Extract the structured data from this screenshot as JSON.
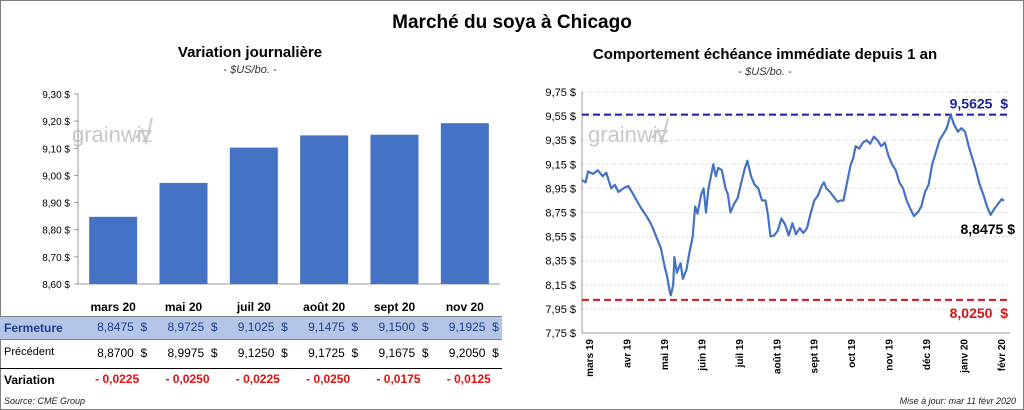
{
  "title": "Marché du soya à Chicago",
  "left": {
    "subtitle": "Variation journalière",
    "unit": "- $US/bo. -",
    "watermark": "grainwiz",
    "chart_data": {
      "type": "bar",
      "categories": [
        "mars 20",
        "mai 20",
        "juil 20",
        "août 20",
        "sept 20",
        "nov 20"
      ],
      "values": [
        8.8475,
        8.9725,
        9.1025,
        9.1475,
        9.15,
        9.1925
      ],
      "ylim": [
        8.6,
        9.3
      ],
      "yticks": [
        "8,60 $",
        "8,70 $",
        "8,80 $",
        "8,90 $",
        "9,00 $",
        "9,10 $",
        "9,20 $",
        "9,30 $"
      ],
      "color": "#4472c4"
    },
    "table": {
      "fermeture_label": "Fermeture",
      "fermeture": [
        "8,8475  $",
        "8,9725  $",
        "9,1025  $",
        "9,1475  $",
        "9,1500  $",
        "9,1925  $"
      ],
      "precedent_label": "Précédent",
      "precedent": [
        "8,8700  $",
        "8,9975  $",
        "9,1250  $",
        "9,1725  $",
        "9,1675  $",
        "9,2050  $"
      ],
      "variation_label": "Variation",
      "variation": [
        "- 0,0225",
        "- 0,0250",
        "- 0,0225",
        "- 0,0250",
        "- 0,0175",
        "- 0,0125"
      ]
    },
    "source": "Source: CME Group"
  },
  "right": {
    "subtitle": "Comportement  échéance immédiate depuis 1 an",
    "unit": "- $US/bo. -",
    "watermark": "grainwiz",
    "chart_data": {
      "type": "line",
      "ylim": [
        7.75,
        9.75
      ],
      "yticks": [
        "7,75 $",
        "7,95 $",
        "8,15 $",
        "8,35 $",
        "8,55 $",
        "8,75 $",
        "8,95 $",
        "9,15 $",
        "9,35 $",
        "9,55 $",
        "9,75 $"
      ],
      "xticks": [
        "mars 19",
        "avr 19",
        "mai 19",
        "juin 19",
        "juil 19",
        "août 19",
        "sept 19",
        "oct 19",
        "nov 19",
        "déc 19",
        "janv 20",
        "févr 20"
      ],
      "x_start": "2019-03-01",
      "x_end": "2020-02-11",
      "series": [
        {
          "color": "#4472c4",
          "points": [
            [
              "2019-03-01",
              9.02
            ],
            [
              "2019-03-04",
              9.0
            ],
            [
              "2019-03-06",
              9.09
            ],
            [
              "2019-03-10",
              9.07
            ],
            [
              "2019-03-14",
              9.1
            ],
            [
              "2019-03-18",
              9.05
            ],
            [
              "2019-03-21",
              9.08
            ],
            [
              "2019-03-25",
              8.95
            ],
            [
              "2019-03-28",
              8.98
            ],
            [
              "2019-03-31",
              8.92
            ],
            [
              "2019-04-04",
              8.95
            ],
            [
              "2019-04-08",
              8.97
            ],
            [
              "2019-04-11",
              8.92
            ],
            [
              "2019-04-15",
              8.85
            ],
            [
              "2019-04-19",
              8.78
            ],
            [
              "2019-04-23",
              8.72
            ],
            [
              "2019-04-27",
              8.65
            ],
            [
              "2019-05-01",
              8.55
            ],
            [
              "2019-05-05",
              8.45
            ],
            [
              "2019-05-08",
              8.3
            ],
            [
              "2019-05-10",
              8.22
            ],
            [
              "2019-05-12",
              8.1
            ],
            [
              "2019-05-13",
              8.0625
            ],
            [
              "2019-05-15",
              8.15
            ],
            [
              "2019-05-16",
              8.38
            ],
            [
              "2019-05-18",
              8.25
            ],
            [
              "2019-05-21",
              8.33
            ],
            [
              "2019-05-23",
              8.2
            ],
            [
              "2019-05-26",
              8.28
            ],
            [
              "2019-05-28",
              8.4
            ],
            [
              "2019-05-31",
              8.55
            ],
            [
              "2019-06-02",
              8.8
            ],
            [
              "2019-06-04",
              8.74
            ],
            [
              "2019-06-07",
              8.9
            ],
            [
              "2019-06-09",
              8.95
            ],
            [
              "2019-06-11",
              8.75
            ],
            [
              "2019-06-13",
              8.95
            ],
            [
              "2019-06-15",
              9.05
            ],
            [
              "2019-06-17",
              9.15
            ],
            [
              "2019-06-19",
              9.05
            ],
            [
              "2019-06-21",
              9.12
            ],
            [
              "2019-06-24",
              9.1
            ],
            [
              "2019-06-27",
              8.95
            ],
            [
              "2019-06-29",
              8.9
            ],
            [
              "2019-07-01",
              8.75
            ],
            [
              "2019-07-04",
              8.82
            ],
            [
              "2019-07-07",
              8.87
            ],
            [
              "2019-07-10",
              9.0
            ],
            [
              "2019-07-13",
              9.12
            ],
            [
              "2019-07-15",
              9.18
            ],
            [
              "2019-07-18",
              9.05
            ],
            [
              "2019-07-21",
              8.98
            ],
            [
              "2019-07-24",
              8.95
            ],
            [
              "2019-07-27",
              8.85
            ],
            [
              "2019-07-30",
              8.85
            ],
            [
              "2019-08-01",
              8.72
            ],
            [
              "2019-08-03",
              8.55
            ],
            [
              "2019-08-06",
              8.56
            ],
            [
              "2019-08-09",
              8.6
            ],
            [
              "2019-08-12",
              8.7
            ],
            [
              "2019-08-15",
              8.65
            ],
            [
              "2019-08-18",
              8.56
            ],
            [
              "2019-08-21",
              8.66
            ],
            [
              "2019-08-24",
              8.57
            ],
            [
              "2019-08-27",
              8.62
            ],
            [
              "2019-08-30",
              8.58
            ],
            [
              "2019-09-02",
              8.62
            ],
            [
              "2019-09-05",
              8.74
            ],
            [
              "2019-09-08",
              8.85
            ],
            [
              "2019-09-11",
              8.89
            ],
            [
              "2019-09-14",
              8.97
            ],
            [
              "2019-09-16",
              9.0
            ],
            [
              "2019-09-18",
              8.95
            ],
            [
              "2019-09-21",
              8.92
            ],
            [
              "2019-09-24",
              8.88
            ],
            [
              "2019-09-27",
              8.84
            ],
            [
              "2019-09-30",
              8.85
            ],
            [
              "2019-10-02",
              8.85
            ],
            [
              "2019-10-04",
              8.95
            ],
            [
              "2019-10-06",
              9.05
            ],
            [
              "2019-10-08",
              9.15
            ],
            [
              "2019-10-10",
              9.2
            ],
            [
              "2019-10-12",
              9.3
            ],
            [
              "2019-10-15",
              9.28
            ],
            [
              "2019-10-18",
              9.33
            ],
            [
              "2019-10-21",
              9.35
            ],
            [
              "2019-10-24",
              9.32
            ],
            [
              "2019-10-27",
              9.38
            ],
            [
              "2019-10-30",
              9.35
            ],
            [
              "2019-11-02",
              9.3
            ],
            [
              "2019-11-05",
              9.33
            ],
            [
              "2019-11-08",
              9.22
            ],
            [
              "2019-11-11",
              9.15
            ],
            [
              "2019-11-14",
              9.1
            ],
            [
              "2019-11-17",
              9.0
            ],
            [
              "2019-11-20",
              8.95
            ],
            [
              "2019-11-23",
              8.85
            ],
            [
              "2019-11-26",
              8.78
            ],
            [
              "2019-11-29",
              8.72
            ],
            [
              "2019-12-02",
              8.75
            ],
            [
              "2019-12-05",
              8.8
            ],
            [
              "2019-12-08",
              8.92
            ],
            [
              "2019-12-11",
              8.98
            ],
            [
              "2019-12-14",
              9.15
            ],
            [
              "2019-12-17",
              9.25
            ],
            [
              "2019-12-20",
              9.35
            ],
            [
              "2019-12-23",
              9.4
            ],
            [
              "2019-12-26",
              9.45
            ],
            [
              "2019-12-29",
              9.5625
            ],
            [
              "2020-01-01",
              9.48
            ],
            [
              "2020-01-04",
              9.42
            ],
            [
              "2020-01-07",
              9.45
            ],
            [
              "2020-01-10",
              9.42
            ],
            [
              "2020-01-13",
              9.3
            ],
            [
              "2020-01-16",
              9.2
            ],
            [
              "2020-01-19",
              9.1
            ],
            [
              "2020-01-22",
              8.98
            ],
            [
              "2020-01-25",
              8.9
            ],
            [
              "2020-01-28",
              8.8
            ],
            [
              "2020-01-31",
              8.73
            ],
            [
              "2020-02-03",
              8.78
            ],
            [
              "2020-02-06",
              8.82
            ],
            [
              "2020-02-09",
              8.86
            ],
            [
              "2020-02-11",
              8.8475
            ]
          ]
        }
      ],
      "lines": [
        {
          "value": 9.5625,
          "label": "9,5625  $",
          "color": "#1f1f9e"
        },
        {
          "value": 8.025,
          "label": "8,0250  $",
          "color": "#e01010"
        }
      ],
      "last_label": "8,8475 $"
    },
    "updated": "Mise à jour: mar 11 févr 2020"
  }
}
